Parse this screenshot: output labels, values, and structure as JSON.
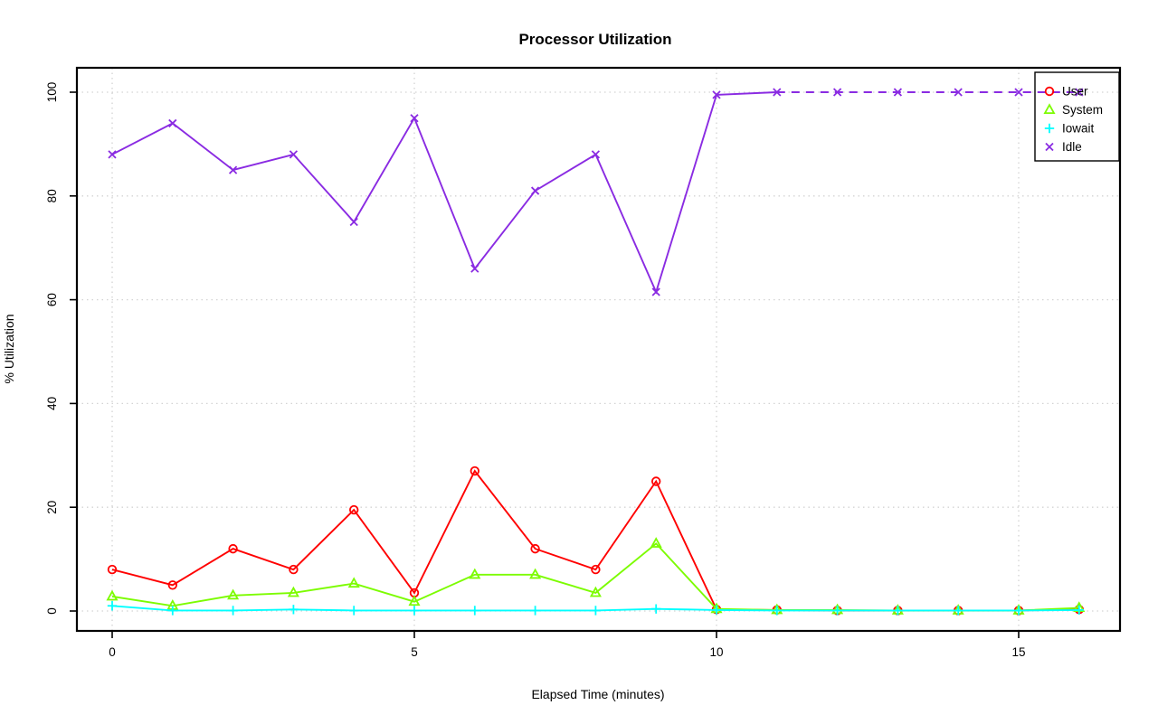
{
  "chart_data": {
    "type": "line",
    "title": "Processor Utilization",
    "xlabel": "Elapsed Time (minutes)",
    "ylabel": "% Utilization",
    "x": [
      0,
      1,
      2,
      3,
      4,
      5,
      6,
      7,
      8,
      9,
      10,
      11,
      12,
      13,
      14,
      15,
      16
    ],
    "xlim": [
      0,
      16
    ],
    "ylim": [
      0,
      100
    ],
    "x_ticks": [
      0,
      5,
      10,
      15
    ],
    "y_ticks": [
      0,
      20,
      40,
      60,
      80,
      100
    ],
    "grid": "dotted",
    "gridline_color": "#d3d3d3",
    "axis_color": "#000000",
    "legend_position": "top-right",
    "series": [
      {
        "name": "User",
        "color": "#ff0000",
        "marker": "circle",
        "line_style": "solid",
        "values": [
          8,
          5,
          12,
          8,
          19.5,
          3.5,
          27,
          12,
          8,
          25,
          0.3,
          0.2,
          0.1,
          0.1,
          0.1,
          0.1,
          0.3
        ]
      },
      {
        "name": "System",
        "color": "#7cfc00",
        "marker": "triangle",
        "line_style": "solid",
        "values": [
          2.8,
          1,
          3,
          3.5,
          5.3,
          1.8,
          7,
          7,
          3.5,
          13,
          0.4,
          0.2,
          0.2,
          0.1,
          0.1,
          0.1,
          0.6
        ]
      },
      {
        "name": "Iowait",
        "color": "#00ffff",
        "marker": "plus",
        "line_style": "solid",
        "values": [
          1,
          0.1,
          0.1,
          0.3,
          0.1,
          0.1,
          0.1,
          0.1,
          0.1,
          0.4,
          0.2,
          0.1,
          0.1,
          0.1,
          0.1,
          0.1,
          0.2
        ]
      },
      {
        "name": "Idle",
        "color": "#8a2be2",
        "marker": "x",
        "line_style": "solid_then_dashed",
        "dash_from_index": 11,
        "values": [
          88,
          94,
          85,
          88,
          75,
          95,
          66,
          81,
          88,
          61.5,
          99.5,
          100,
          100,
          100,
          100,
          100,
          100
        ]
      }
    ]
  }
}
